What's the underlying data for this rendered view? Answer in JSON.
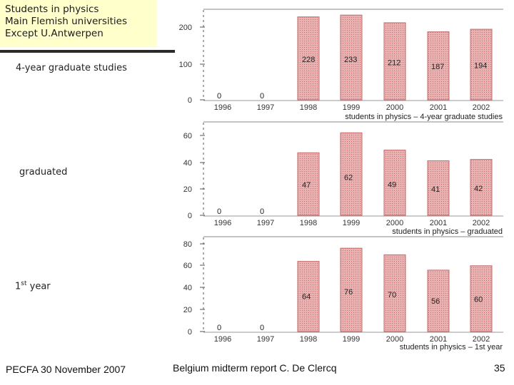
{
  "title": {
    "line1": "Students in physics",
    "line2": "Main Flemish universities",
    "line3": "Except U.Antwerpen"
  },
  "row_labels": {
    "top": "4-year graduate studies",
    "middle": "graduated",
    "bottom_main": "1",
    "bottom_sup": "st",
    "bottom_rest": " year"
  },
  "footer": {
    "left": "PECFA 30 November 2007",
    "center": "Belgium midterm report C. De Clercq",
    "page": "35"
  },
  "colors": {
    "bar": "#e3a0a0",
    "bar_edge": "#c46a6a",
    "axis": "#555555"
  },
  "chart_data": [
    {
      "type": "bar",
      "categories": [
        "1996",
        "1997",
        "1998",
        "1999",
        "2000",
        "2001",
        "2002"
      ],
      "values": [
        0,
        0,
        228,
        233,
        212,
        187,
        194
      ],
      "value_labels": [
        "0",
        "0",
        "228",
        "233",
        "212",
        "187",
        "194"
      ],
      "yticks": [
        "0",
        "100",
        "200"
      ],
      "ylim": [
        0,
        250
      ],
      "caption": "students in physics – 4-year graduate studies"
    },
    {
      "type": "bar",
      "categories": [
        "1996",
        "1997",
        "1998",
        "1999",
        "2000",
        "2001",
        "2002"
      ],
      "values": [
        0,
        0,
        47,
        62,
        49,
        41,
        42
      ],
      "value_labels": [
        "0",
        "0",
        "47",
        "62",
        "49",
        "41",
        "42"
      ],
      "yticks": [
        "0",
        "20",
        "40",
        "60"
      ],
      "ylim": [
        0,
        65
      ],
      "caption": "students in physics – graduated"
    },
    {
      "type": "bar",
      "categories": [
        "1996",
        "1997",
        "1998",
        "1999",
        "2000",
        "2001",
        "2002"
      ],
      "values": [
        0,
        0,
        64,
        76,
        70,
        56,
        60
      ],
      "value_labels": [
        "0",
        "0",
        "64",
        "76",
        "70",
        "56",
        "60"
      ],
      "yticks": [
        "0",
        "20",
        "40",
        "60",
        "80"
      ],
      "ylim": [
        0,
        80
      ],
      "caption": "students in physics – 1st year"
    }
  ]
}
